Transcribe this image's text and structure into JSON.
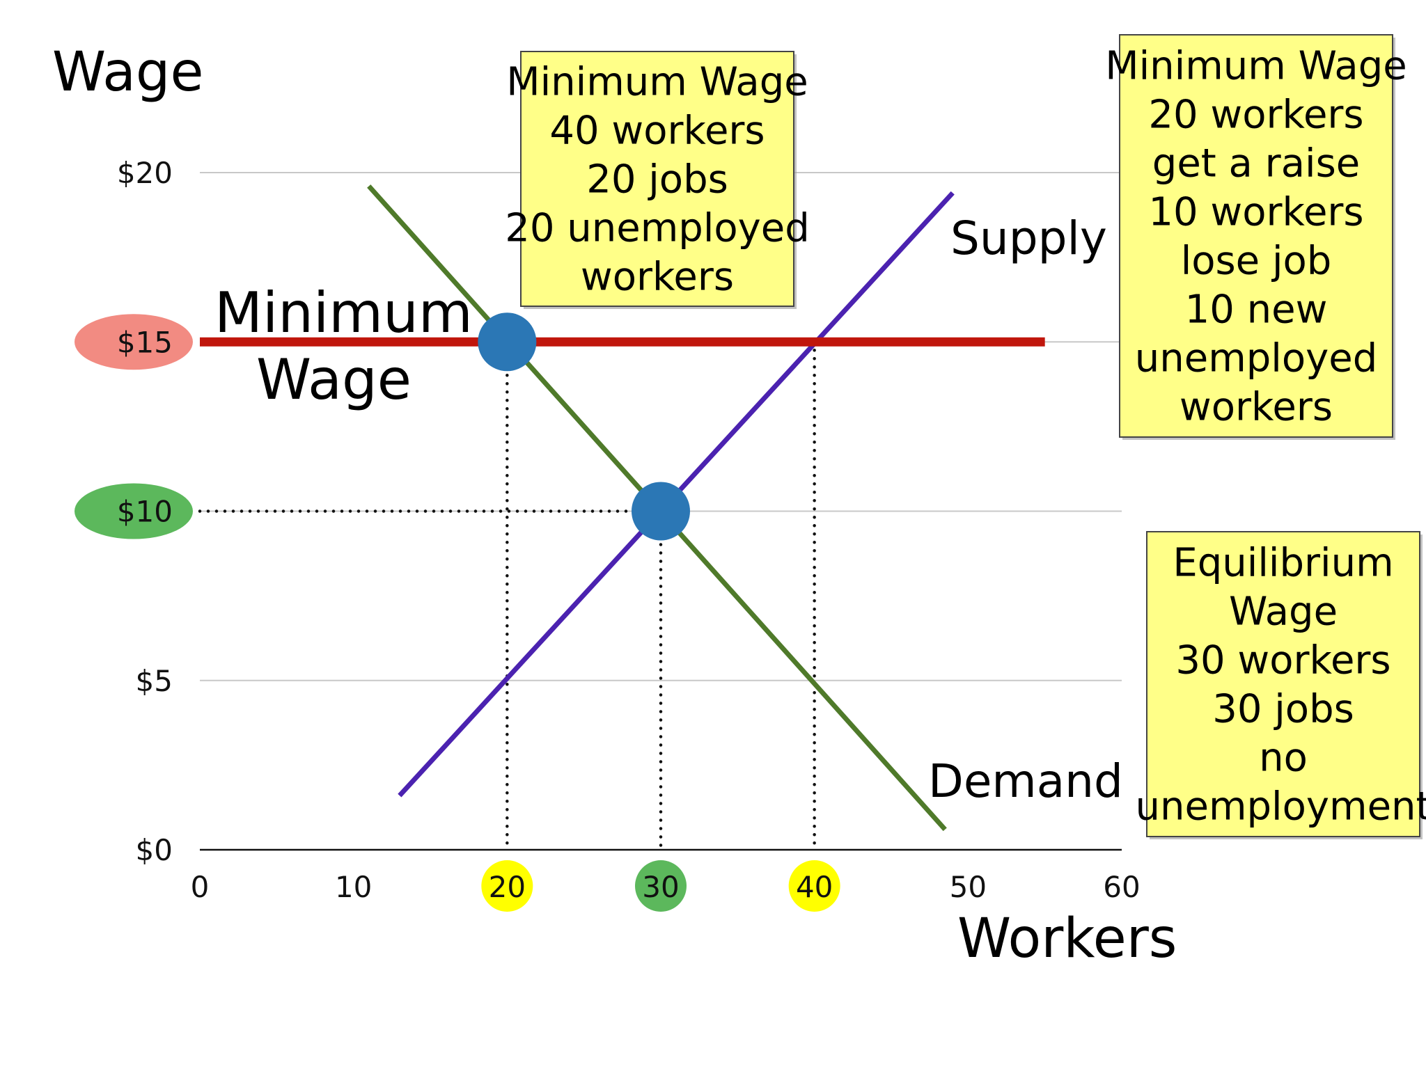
{
  "chart_data": {
    "type": "line",
    "xlabel": "Workers",
    "ylabel": "Wage",
    "xlim": [
      0,
      60
    ],
    "ylim": [
      0,
      20
    ],
    "x_ticks": [
      {
        "value": 0,
        "label": "0",
        "highlight": ""
      },
      {
        "value": 10,
        "label": "10",
        "highlight": ""
      },
      {
        "value": 20,
        "label": "20",
        "highlight": "#ffff00"
      },
      {
        "value": 30,
        "label": "30",
        "highlight": "#5cb85c"
      },
      {
        "value": 40,
        "label": "40",
        "highlight": "#ffff00"
      },
      {
        "value": 50,
        "label": "50",
        "highlight": ""
      },
      {
        "value": 60,
        "label": "60",
        "highlight": ""
      }
    ],
    "y_ticks": [
      {
        "value": 0,
        "label": "$0",
        "highlight": ""
      },
      {
        "value": 5,
        "label": "$5",
        "highlight": ""
      },
      {
        "value": 10,
        "label": "$10",
        "highlight": "#5cb85c"
      },
      {
        "value": 15,
        "label": "$15",
        "highlight": "#f28b82"
      },
      {
        "value": 20,
        "label": "$20",
        "highlight": ""
      }
    ],
    "grid": true,
    "series": [
      {
        "name": "Supply",
        "color": "#4b22b0",
        "x": [
          13.0,
          49.0
        ],
        "y": [
          1.6,
          19.4
        ]
      },
      {
        "name": "Demand",
        "color": "#4f7a2a",
        "x": [
          11.0,
          48.5
        ],
        "y": [
          19.6,
          0.6
        ]
      }
    ],
    "minimum_wage": {
      "label_line1": "Minimum",
      "label_line2": "Wage",
      "value": 15,
      "x_range": [
        0,
        55
      ],
      "color": "#c0160c"
    },
    "points": [
      {
        "x": 20,
        "y": 15,
        "color": "#2b77b5"
      },
      {
        "x": 30,
        "y": 10,
        "color": "#2b77b5"
      }
    ],
    "dotted_guides": [
      {
        "from": [
          20,
          15
        ],
        "to": [
          20,
          0
        ]
      },
      {
        "from": [
          30,
          10
        ],
        "to": [
          30,
          0
        ]
      },
      {
        "from": [
          40,
          15
        ],
        "to": [
          40,
          0
        ]
      },
      {
        "from": [
          0,
          10
        ],
        "to": [
          30,
          10
        ]
      }
    ],
    "annotations": [
      {
        "lines": [
          "Minimum Wage",
          "40 workers",
          "20 jobs",
          "20 unemployed",
          "workers"
        ]
      },
      {
        "lines": [
          "Minimum Wage",
          "20 workers",
          "get a raise",
          "10 workers",
          "lose job",
          "10 new",
          "unemployed",
          "workers"
        ]
      },
      {
        "lines": [
          "Equilibrium",
          "Wage",
          "30 workers",
          "30 jobs",
          "no",
          "unemployment"
        ]
      }
    ]
  }
}
